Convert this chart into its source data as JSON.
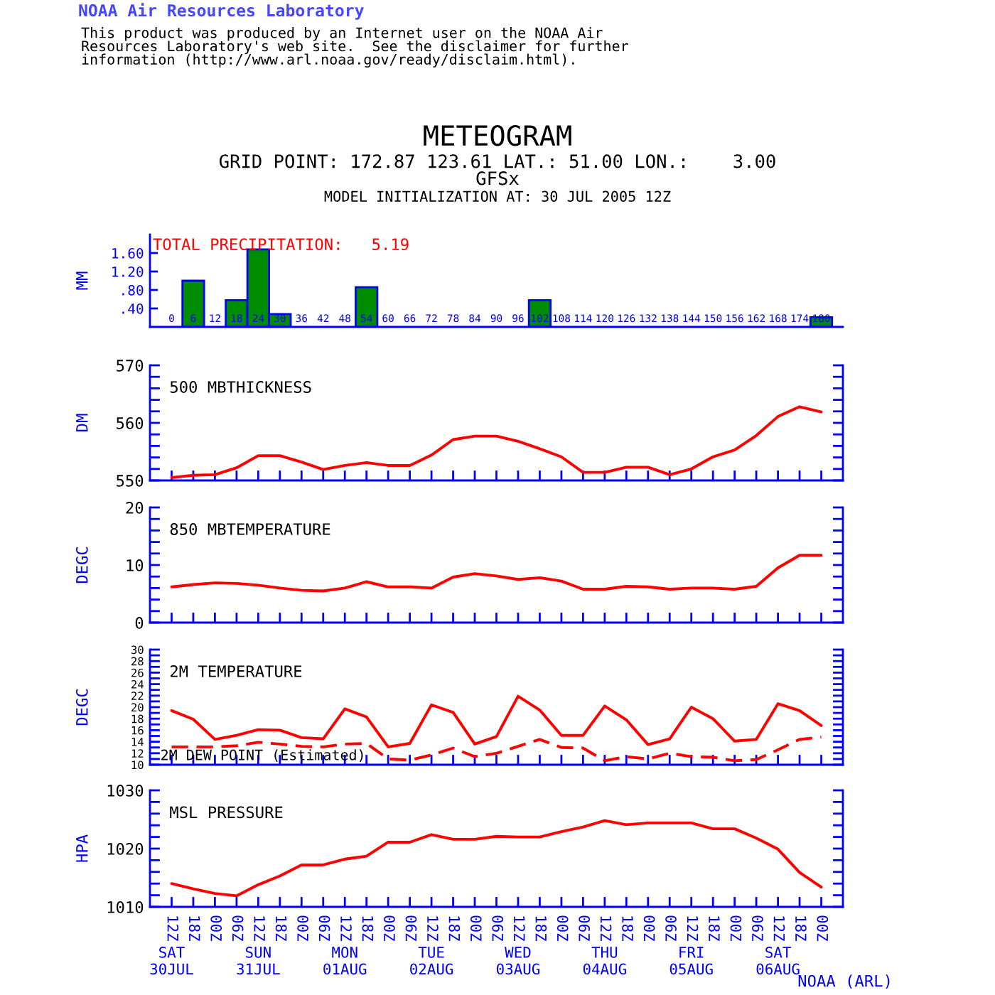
{
  "chart_data": [
    {
      "type": "other",
      "title": "METEOGRAM",
      "subtitle": "GRID POINT: 172.87 123.61 LAT.: 51.00 LON.:    3.00\nGFSx",
      "annotations": [
        "NOAA Air Resources Laboratory",
        "This product was produced by an Internet user on the NOAA Air\nResources Laboratory's web site.  See the disclaimer for further\ninformation (http://www.arl.noaa.gov/ready/disclaim.html).",
        "MODEL INITIALIZATION AT: 30 JUL 2005 12Z"
      ]
    },
    {
      "type": "bar",
      "title": "TOTAL PRECIPITATION:   5.19",
      "ylabel": "MM",
      "x": [
        6,
        18,
        24,
        30,
        54,
        102,
        180
      ],
      "values": [
        1.0,
        0.58,
        1.68,
        0.28,
        0.86,
        0.58,
        0.21
      ],
      "color": "#008c00",
      "xlim": [
        -6,
        186
      ],
      "xticks": [
        0,
        6,
        12,
        18,
        24,
        30,
        36,
        42,
        48,
        54,
        60,
        66,
        72,
        78,
        84,
        90,
        96,
        102,
        108,
        114,
        120,
        126,
        132,
        138,
        144,
        150,
        156,
        162,
        168,
        174,
        180
      ],
      "ylim": [
        0,
        2.0
      ],
      "yticks": [
        {
          "value": 0.4,
          "label": ".40"
        },
        {
          "value": 0.8,
          "label": ".80"
        },
        {
          "value": 1.2,
          "label": "1.20"
        },
        {
          "value": 1.6,
          "label": "1.60"
        }
      ]
    },
    {
      "type": "line",
      "title": "500 MBTHICKNESS",
      "ylabel": "DM",
      "x": [
        "2005-07-30T12:00",
        "2005-07-30T18:00",
        "2005-07-31T00:00",
        "2005-07-31T06:00",
        "2005-07-31T12:00",
        "2005-07-31T18:00",
        "2005-08-01T00:00",
        "2005-08-01T06:00",
        "2005-08-01T12:00",
        "2005-08-01T18:00",
        "2005-08-02T00:00",
        "2005-08-02T06:00",
        "2005-08-02T12:00",
        "2005-08-02T18:00",
        "2005-08-03T00:00",
        "2005-08-03T06:00",
        "2005-08-03T12:00",
        "2005-08-03T18:00",
        "2005-08-04T00:00",
        "2005-08-04T06:00",
        "2005-08-04T12:00",
        "2005-08-04T18:00",
        "2005-08-05T00:00",
        "2005-08-05T06:00",
        "2005-08-05T12:00",
        "2005-08-05T18:00",
        "2005-08-06T00:00",
        "2005-08-06T06:00",
        "2005-08-06T12:00",
        "2005-08-06T18:00",
        "2005-08-07T00:00"
      ],
      "series": [
        {
          "color": "#ff0000",
          "values": [
            550.5,
            550.9,
            551.0,
            552.2,
            554.3,
            554.3,
            553.2,
            551.9,
            552.6,
            553.1,
            552.6,
            552.6,
            554.4,
            557.1,
            557.7,
            557.7,
            556.8,
            555.5,
            554.1,
            551.4,
            551.4,
            552.3,
            552.3,
            551.0,
            552.0,
            554.1,
            555.3,
            557.8,
            561.1,
            562.8,
            561.9
          ]
        }
      ],
      "xlim": [
        "2005-07-30T06:00",
        "2005-08-07T06:00"
      ],
      "xticks": [
        {
          "value": "2005-07-30T12:00",
          "label": null
        },
        {
          "value": "2005-07-30T18:00",
          "label": null
        },
        {
          "value": "2005-07-31T00:00",
          "label": null
        },
        {
          "value": "2005-07-31T06:00",
          "label": null
        },
        {
          "value": "2005-07-31T12:00",
          "label": null
        },
        {
          "value": "2005-07-31T18:00",
          "label": null
        },
        {
          "value": "2005-08-01T00:00",
          "label": null
        },
        {
          "value": "2005-08-01T06:00",
          "label": null
        },
        {
          "value": "2005-08-01T12:00",
          "label": null
        },
        {
          "value": "2005-08-01T18:00",
          "label": null
        },
        {
          "value": "2005-08-02T00:00",
          "label": null
        },
        {
          "value": "2005-08-02T06:00",
          "label": null
        },
        {
          "value": "2005-08-02T12:00",
          "label": null
        },
        {
          "value": "2005-08-02T18:00",
          "label": null
        },
        {
          "value": "2005-08-03T00:00",
          "label": null
        },
        {
          "value": "2005-08-03T06:00",
          "label": null
        },
        {
          "value": "2005-08-03T12:00",
          "label": null
        },
        {
          "value": "2005-08-03T18:00",
          "label": null
        },
        {
          "value": "2005-08-04T00:00",
          "label": null
        },
        {
          "value": "2005-08-04T06:00",
          "label": null
        },
        {
          "value": "2005-08-04T12:00",
          "label": null
        },
        {
          "value": "2005-08-04T18:00",
          "label": null
        },
        {
          "value": "2005-08-05T00:00",
          "label": null
        },
        {
          "value": "2005-08-05T06:00",
          "label": null
        },
        {
          "value": "2005-08-05T12:00",
          "label": null
        },
        {
          "value": "2005-08-05T18:00",
          "label": null
        },
        {
          "value": "2005-08-06T00:00",
          "label": null
        },
        {
          "value": "2005-08-06T06:00",
          "label": null
        },
        {
          "value": "2005-08-06T12:00",
          "label": null
        },
        {
          "value": "2005-08-06T18:00",
          "label": null
        },
        {
          "value": "2005-08-07T00:00",
          "label": null
        }
      ],
      "ylim": [
        550,
        570
      ],
      "yticks": [
        550,
        {
          "value": 552,
          "label": null
        },
        {
          "value": 554,
          "label": null
        },
        {
          "value": 556,
          "label": null
        },
        {
          "value": 558,
          "label": null
        },
        560,
        {
          "value": 562,
          "label": null
        },
        {
          "value": 564,
          "label": null
        },
        {
          "value": 566,
          "label": null
        },
        {
          "value": 568,
          "label": null
        },
        570
      ],
      "tick_labels": "y"
    },
    {
      "type": "line",
      "title": "850 MBTEMPERATURE",
      "ylabel": "DEGC",
      "x": [
        "2005-07-30T12:00",
        "2005-07-30T18:00",
        "2005-07-31T00:00",
        "2005-07-31T06:00",
        "2005-07-31T12:00",
        "2005-07-31T18:00",
        "2005-08-01T00:00",
        "2005-08-01T06:00",
        "2005-08-01T12:00",
        "2005-08-01T18:00",
        "2005-08-02T00:00",
        "2005-08-02T06:00",
        "2005-08-02T12:00",
        "2005-08-02T18:00",
        "2005-08-03T00:00",
        "2005-08-03T06:00",
        "2005-08-03T12:00",
        "2005-08-03T18:00",
        "2005-08-04T00:00",
        "2005-08-04T06:00",
        "2005-08-04T12:00",
        "2005-08-04T18:00",
        "2005-08-05T00:00",
        "2005-08-05T06:00",
        "2005-08-05T12:00",
        "2005-08-05T18:00",
        "2005-08-06T00:00",
        "2005-08-06T06:00",
        "2005-08-06T12:00",
        "2005-08-06T18:00",
        "2005-08-07T00:00"
      ],
      "series": [
        {
          "color": "#ff0000",
          "values": [
            6.2,
            6.6,
            6.9,
            6.8,
            6.5,
            6.0,
            5.6,
            5.5,
            6.0,
            7.1,
            6.2,
            6.2,
            6.0,
            7.9,
            8.5,
            8.1,
            7.5,
            7.8,
            7.2,
            5.8,
            5.8,
            6.3,
            6.2,
            5.8,
            6.0,
            6.0,
            5.8,
            6.3,
            9.5,
            11.7,
            11.7
          ]
        }
      ],
      "xlim": [
        "2005-07-30T06:00",
        "2005-08-07T06:00"
      ],
      "xticks": [
        {
          "value": "2005-07-30T12:00",
          "label": null
        },
        {
          "value": "2005-07-30T18:00",
          "label": null
        },
        {
          "value": "2005-07-31T00:00",
          "label": null
        },
        {
          "value": "2005-07-31T06:00",
          "label": null
        },
        {
          "value": "2005-07-31T12:00",
          "label": null
        },
        {
          "value": "2005-07-31T18:00",
          "label": null
        },
        {
          "value": "2005-08-01T00:00",
          "label": null
        },
        {
          "value": "2005-08-01T06:00",
          "label": null
        },
        {
          "value": "2005-08-01T12:00",
          "label": null
        },
        {
          "value": "2005-08-01T18:00",
          "label": null
        },
        {
          "value": "2005-08-02T00:00",
          "label": null
        },
        {
          "value": "2005-08-02T06:00",
          "label": null
        },
        {
          "value": "2005-08-02T12:00",
          "label": null
        },
        {
          "value": "2005-08-02T18:00",
          "label": null
        },
        {
          "value": "2005-08-03T00:00",
          "label": null
        },
        {
          "value": "2005-08-03T06:00",
          "label": null
        },
        {
          "value": "2005-08-03T12:00",
          "label": null
        },
        {
          "value": "2005-08-03T18:00",
          "label": null
        },
        {
          "value": "2005-08-04T00:00",
          "label": null
        },
        {
          "value": "2005-08-04T06:00",
          "label": null
        },
        {
          "value": "2005-08-04T12:00",
          "label": null
        },
        {
          "value": "2005-08-04T18:00",
          "label": null
        },
        {
          "value": "2005-08-05T00:00",
          "label": null
        },
        {
          "value": "2005-08-05T06:00",
          "label": null
        },
        {
          "value": "2005-08-05T12:00",
          "label": null
        },
        {
          "value": "2005-08-05T18:00",
          "label": null
        },
        {
          "value": "2005-08-06T00:00",
          "label": null
        },
        {
          "value": "2005-08-06T06:00",
          "label": null
        },
        {
          "value": "2005-08-06T12:00",
          "label": null
        },
        {
          "value": "2005-08-06T18:00",
          "label": null
        },
        {
          "value": "2005-08-07T00:00",
          "label": null
        }
      ],
      "ylim": [
        0,
        20
      ],
      "yticks": [
        0,
        {
          "value": 2,
          "label": null
        },
        {
          "value": 4,
          "label": null
        },
        {
          "value": 6,
          "label": null
        },
        {
          "value": 8,
          "label": null
        },
        10,
        {
          "value": 12,
          "label": null
        },
        {
          "value": 14,
          "label": null
        },
        {
          "value": 16,
          "label": null
        },
        {
          "value": 18,
          "label": null
        },
        20
      ],
      "tick_labels": "y"
    },
    {
      "type": "line",
      "title": "2M TEMPERATURE",
      "ylabel": "DEGC",
      "x": [
        "2005-07-30T12:00",
        "2005-07-30T18:00",
        "2005-07-31T00:00",
        "2005-07-31T06:00",
        "2005-07-31T12:00",
        "2005-07-31T18:00",
        "2005-08-01T00:00",
        "2005-08-01T06:00",
        "2005-08-01T12:00",
        "2005-08-01T18:00",
        "2005-08-02T00:00",
        "2005-08-02T06:00",
        "2005-08-02T12:00",
        "2005-08-02T18:00",
        "2005-08-03T00:00",
        "2005-08-03T06:00",
        "2005-08-03T12:00",
        "2005-08-03T18:00",
        "2005-08-04T00:00",
        "2005-08-04T06:00",
        "2005-08-04T12:00",
        "2005-08-04T18:00",
        "2005-08-05T00:00",
        "2005-08-05T06:00",
        "2005-08-05T12:00",
        "2005-08-05T18:00",
        "2005-08-06T00:00",
        "2005-08-06T06:00",
        "2005-08-06T12:00",
        "2005-08-06T18:00",
        "2005-08-07T00:00"
      ],
      "series": [
        {
          "color": "#ff0000",
          "values": [
            19.4,
            17.9,
            14.4,
            15.1,
            16.1,
            16.0,
            14.7,
            14.5,
            19.7,
            18.3,
            13.1,
            13.7,
            20.4,
            19.1,
            13.6,
            14.9,
            21.9,
            19.5,
            15.1,
            15.1,
            20.2,
            17.8,
            13.5,
            14.5,
            20.0,
            18.0,
            14.1,
            14.4,
            20.6,
            19.4,
            16.8
          ]
        },
        {
          "name": "2M DEW POINT (Estimated)",
          "color": "#ff0000",
          "line_style": "dashed",
          "values": [
            13.1,
            13.1,
            13.1,
            13.3,
            13.9,
            13.6,
            13.2,
            13.1,
            13.6,
            13.7,
            11.0,
            10.8,
            11.7,
            12.9,
            11.4,
            12.0,
            13.2,
            14.4,
            13.0,
            12.9,
            10.7,
            11.4,
            11.0,
            12.0,
            11.4,
            11.3,
            10.7,
            10.9,
            12.6,
            14.4,
            14.8
          ]
        }
      ],
      "xlim": [
        "2005-07-30T06:00",
        "2005-08-07T06:00"
      ],
      "xticks": [
        {
          "value": "2005-07-30T12:00",
          "label": null
        },
        {
          "value": "2005-07-30T18:00",
          "label": null
        },
        {
          "value": "2005-07-31T00:00",
          "label": null
        },
        {
          "value": "2005-07-31T06:00",
          "label": null
        },
        {
          "value": "2005-07-31T12:00",
          "label": null
        },
        {
          "value": "2005-07-31T18:00",
          "label": null
        },
        {
          "value": "2005-08-01T00:00",
          "label": null
        },
        {
          "value": "2005-08-01T06:00",
          "label": null
        },
        {
          "value": "2005-08-01T12:00",
          "label": null
        },
        {
          "value": "2005-08-01T18:00",
          "label": null
        },
        {
          "value": "2005-08-02T00:00",
          "label": null
        },
        {
          "value": "2005-08-02T06:00",
          "label": null
        },
        {
          "value": "2005-08-02T12:00",
          "label": null
        },
        {
          "value": "2005-08-02T18:00",
          "label": null
        },
        {
          "value": "2005-08-03T00:00",
          "label": null
        },
        {
          "value": "2005-08-03T06:00",
          "label": null
        },
        {
          "value": "2005-08-03T12:00",
          "label": null
        },
        {
          "value": "2005-08-03T18:00",
          "label": null
        },
        {
          "value": "2005-08-04T00:00",
          "label": null
        },
        {
          "value": "2005-08-04T06:00",
          "label": null
        },
        {
          "value": "2005-08-04T12:00",
          "label": null
        },
        {
          "value": "2005-08-04T18:00",
          "label": null
        },
        {
          "value": "2005-08-05T00:00",
          "label": null
        },
        {
          "value": "2005-08-05T06:00",
          "label": null
        },
        {
          "value": "2005-08-05T12:00",
          "label": null
        },
        {
          "value": "2005-08-05T18:00",
          "label": null
        },
        {
          "value": "2005-08-06T00:00",
          "label": null
        },
        {
          "value": "2005-08-06T06:00",
          "label": null
        },
        {
          "value": "2005-08-06T12:00",
          "label": null
        },
        {
          "value": "2005-08-06T18:00",
          "label": null
        },
        {
          "value": "2005-08-07T00:00",
          "label": null
        }
      ],
      "ylim": [
        10,
        30
      ],
      "yticks": [
        10,
        {
          "value": 11,
          "label": null
        },
        12,
        {
          "value": 13,
          "label": null
        },
        14,
        {
          "value": 15,
          "label": null
        },
        16,
        {
          "value": 17,
          "label": null
        },
        18,
        {
          "value": 19,
          "label": null
        },
        20,
        {
          "value": 21,
          "label": null
        },
        22,
        {
          "value": 23,
          "label": null
        },
        24,
        {
          "value": 25,
          "label": null
        },
        26,
        {
          "value": 27,
          "label": null
        },
        28,
        {
          "value": 29,
          "label": null
        },
        30
      ],
      "tick_labels": "y"
    },
    {
      "type": "line",
      "title": "MSL PRESSURE",
      "ylabel": "HPA",
      "x": [
        "2005-07-30T12:00",
        "2005-07-30T18:00",
        "2005-07-31T00:00",
        "2005-07-31T06:00",
        "2005-07-31T12:00",
        "2005-07-31T18:00",
        "2005-08-01T00:00",
        "2005-08-01T06:00",
        "2005-08-01T12:00",
        "2005-08-01T18:00",
        "2005-08-02T00:00",
        "2005-08-02T06:00",
        "2005-08-02T12:00",
        "2005-08-02T18:00",
        "2005-08-03T00:00",
        "2005-08-03T06:00",
        "2005-08-03T12:00",
        "2005-08-03T18:00",
        "2005-08-04T00:00",
        "2005-08-04T06:00",
        "2005-08-04T12:00",
        "2005-08-04T18:00",
        "2005-08-05T00:00",
        "2005-08-05T06:00",
        "2005-08-05T12:00",
        "2005-08-05T18:00",
        "2005-08-06T00:00",
        "2005-08-06T06:00",
        "2005-08-06T12:00",
        "2005-08-06T18:00",
        "2005-08-07T00:00"
      ],
      "series": [
        {
          "color": "#ff0000",
          "values": [
            1014.0,
            1013.1,
            1012.3,
            1011.9,
            1013.8,
            1015.3,
            1017.2,
            1017.2,
            1018.2,
            1018.7,
            1021.1,
            1021.1,
            1022.4,
            1021.6,
            1021.6,
            1022.1,
            1022.0,
            1022.0,
            1022.9,
            1023.7,
            1024.8,
            1024.1,
            1024.4,
            1024.4,
            1024.4,
            1023.4,
            1023.4,
            1021.8,
            1019.9,
            1015.9,
            1013.4
          ]
        }
      ],
      "xlim": [
        "2005-07-30T06:00",
        "2005-08-07T06:00"
      ],
      "xticks": [
        {
          "value": "2005-07-30T12:00",
          "label": "12Z"
        },
        {
          "value": "2005-07-30T18:00",
          "label": "18Z"
        },
        {
          "value": "2005-07-31T00:00",
          "label": "00Z"
        },
        {
          "value": "2005-07-31T06:00",
          "label": "06Z"
        },
        {
          "value": "2005-07-31T12:00",
          "label": "12Z"
        },
        {
          "value": "2005-07-31T18:00",
          "label": "18Z"
        },
        {
          "value": "2005-08-01T00:00",
          "label": "00Z"
        },
        {
          "value": "2005-08-01T06:00",
          "label": "06Z"
        },
        {
          "value": "2005-08-01T12:00",
          "label": "12Z"
        },
        {
          "value": "2005-08-01T18:00",
          "label": "18Z"
        },
        {
          "value": "2005-08-02T00:00",
          "label": "00Z"
        },
        {
          "value": "2005-08-02T06:00",
          "label": "06Z"
        },
        {
          "value": "2005-08-02T12:00",
          "label": "12Z"
        },
        {
          "value": "2005-08-02T18:00",
          "label": "18Z"
        },
        {
          "value": "2005-08-03T00:00",
          "label": "00Z"
        },
        {
          "value": "2005-08-03T06:00",
          "label": "06Z"
        },
        {
          "value": "2005-08-03T12:00",
          "label": "12Z"
        },
        {
          "value": "2005-08-03T18:00",
          "label": "18Z"
        },
        {
          "value": "2005-08-04T00:00",
          "label": "00Z"
        },
        {
          "value": "2005-08-04T06:00",
          "label": "06Z"
        },
        {
          "value": "2005-08-04T12:00",
          "label": "12Z"
        },
        {
          "value": "2005-08-04T18:00",
          "label": "18Z"
        },
        {
          "value": "2005-08-05T00:00",
          "label": "00Z"
        },
        {
          "value": "2005-08-05T06:00",
          "label": "06Z"
        },
        {
          "value": "2005-08-05T12:00",
          "label": "12Z"
        },
        {
          "value": "2005-08-05T18:00",
          "label": "18Z"
        },
        {
          "value": "2005-08-06T00:00",
          "label": "00Z"
        },
        {
          "value": "2005-08-06T06:00",
          "label": "06Z"
        },
        {
          "value": "2005-08-06T12:00",
          "label": "12Z"
        },
        {
          "value": "2005-08-06T18:00",
          "label": "18Z"
        },
        {
          "value": "2005-08-07T00:00",
          "label": "00Z"
        }
      ],
      "x2lim": [
        "2005-07-30T06:00",
        "2005-08-07T06:00"
      ],
      "x2ticks": [
        {
          "value": "2005-07-30T12:00",
          "label": "SAT\n30JUL"
        },
        {
          "value": "2005-07-31T12:00",
          "label": "SUN\n31JUL"
        },
        {
          "value": "2005-08-01T12:00",
          "label": "MON\n01AUG"
        },
        {
          "value": "2005-08-02T12:00",
          "label": "TUE\n02AUG"
        },
        {
          "value": "2005-08-03T12:00",
          "label": "WED\n03AUG"
        },
        {
          "value": "2005-08-04T12:00",
          "label": "THU\n04AUG"
        },
        {
          "value": "2005-08-05T12:00",
          "label": "FRI\n05AUG"
        },
        {
          "value": "2005-08-06T12:00",
          "label": "SAT\n06AUG"
        }
      ],
      "ylim": [
        1010,
        1030
      ],
      "yticks": [
        1010,
        {
          "value": 1012,
          "label": null
        },
        {
          "value": 1014,
          "label": null
        },
        {
          "value": 1016,
          "label": null
        },
        {
          "value": 1018,
          "label": null
        },
        1020,
        {
          "value": 1022,
          "label": null
        },
        {
          "value": 1024,
          "label": null
        },
        {
          "value": 1026,
          "label": null
        },
        {
          "value": 1028,
          "label": null
        },
        1030
      ],
      "annotations": [
        "NOAA (ARL)"
      ]
    }
  ]
}
